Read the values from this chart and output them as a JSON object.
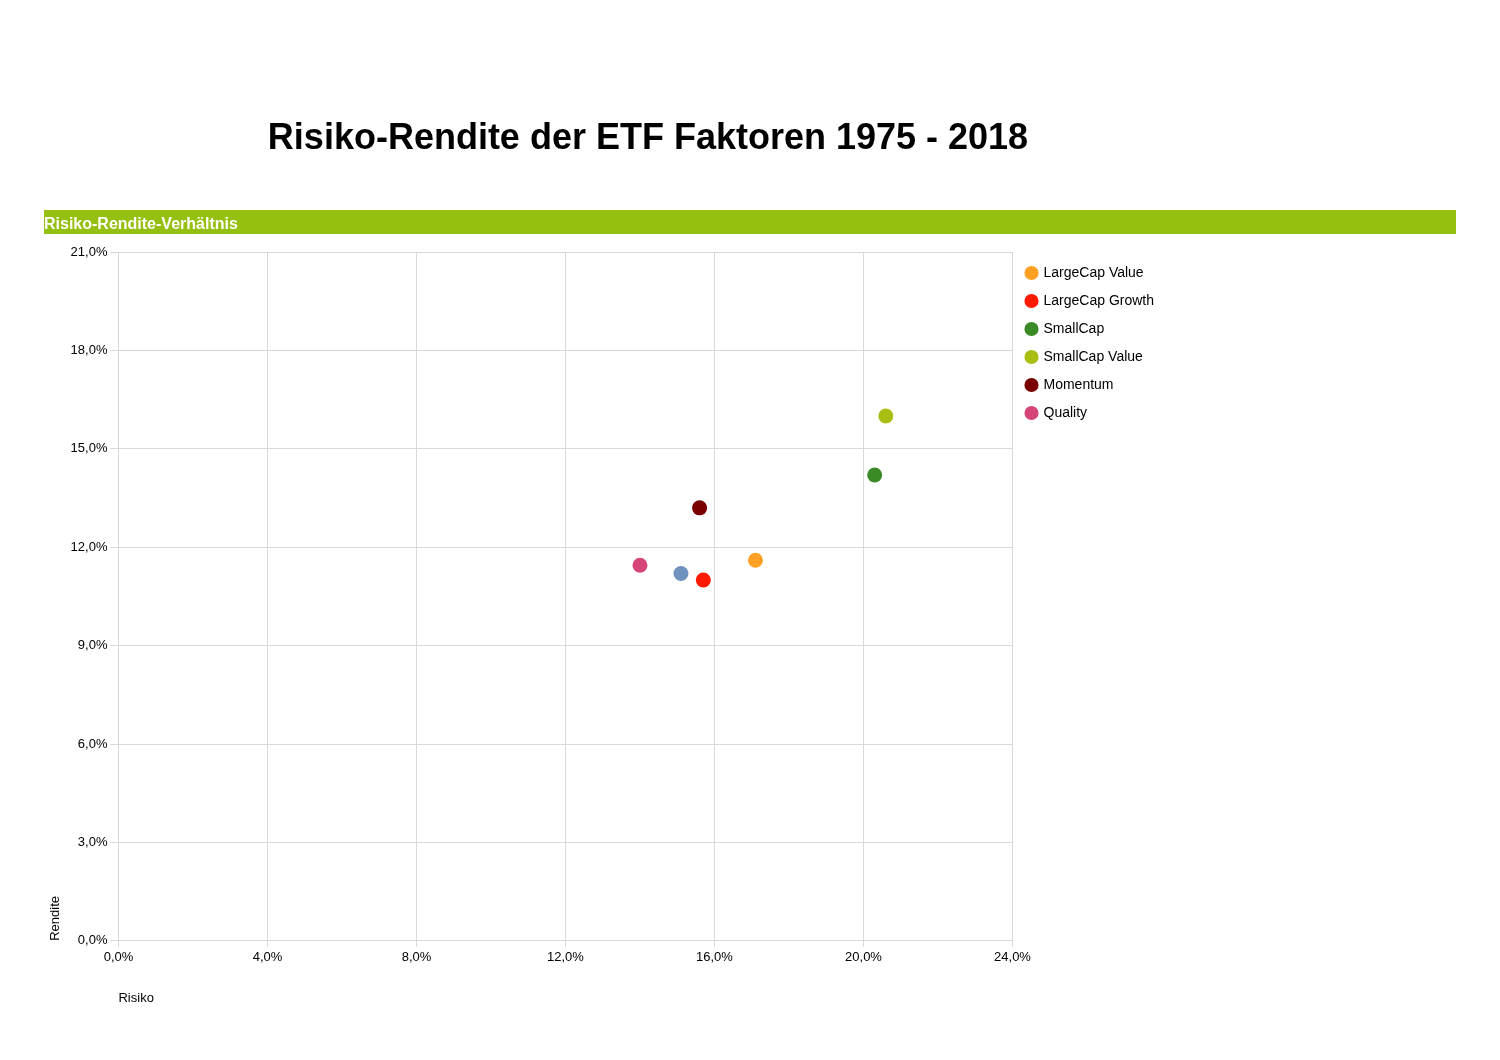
{
  "chart_data": {
    "type": "scatter",
    "title": "Risiko-Rendite der ETF Faktoren 1975 - 2018",
    "subtitle": "Risiko-Rendite-Verhältnis",
    "xlabel": "Risiko",
    "ylabel": "Rendite",
    "xlim": [
      0,
      24
    ],
    "xticks": [
      {
        "value": 0,
        "label": "0,0%"
      },
      {
        "value": 4,
        "label": "4,0%"
      },
      {
        "value": 8,
        "label": "8,0%"
      },
      {
        "value": 12,
        "label": "12,0%"
      },
      {
        "value": 16,
        "label": "16,0%"
      },
      {
        "value": 20,
        "label": "20,0%"
      },
      {
        "value": 24,
        "label": "24,0%"
      }
    ],
    "ylim": [
      0,
      21
    ],
    "yticks": [
      {
        "value": 0,
        "label": "0,0%"
      },
      {
        "value": 3,
        "label": "3,0%"
      },
      {
        "value": 6,
        "label": "6,0%"
      },
      {
        "value": 9,
        "label": "9,0%"
      },
      {
        "value": 12,
        "label": "12,0%"
      },
      {
        "value": 15,
        "label": "15,0%"
      },
      {
        "value": 18,
        "label": "18,0%"
      },
      {
        "value": 21,
        "label": "21,0%"
      }
    ],
    "grid": true,
    "legend": "right",
    "marker": "circle",
    "series": [
      {
        "color": "#7092be",
        "x": [
          15.1
        ],
        "values": [
          11.2
        ]
      },
      {
        "name": "LargeCap Value",
        "color": "#ffa024",
        "x": [
          17.1
        ],
        "values": [
          11.6
        ]
      },
      {
        "name": "LargeCap Growth",
        "color": "#ff1a00",
        "x": [
          15.7
        ],
        "values": [
          11.0
        ]
      },
      {
        "name": "SmallCap",
        "color": "#3a8a25",
        "x": [
          20.3
        ],
        "values": [
          14.2
        ]
      },
      {
        "name": "SmallCap Value",
        "color": "#a8bf12",
        "x": [
          20.6
        ],
        "values": [
          16.0
        ]
      },
      {
        "name": "Momentum",
        "color": "#7a0000",
        "x": [
          15.6
        ],
        "values": [
          13.2
        ]
      },
      {
        "name": "Quality",
        "color": "#d6457a",
        "x": [
          14.0
        ],
        "values": [
          11.45
        ]
      }
    ]
  }
}
